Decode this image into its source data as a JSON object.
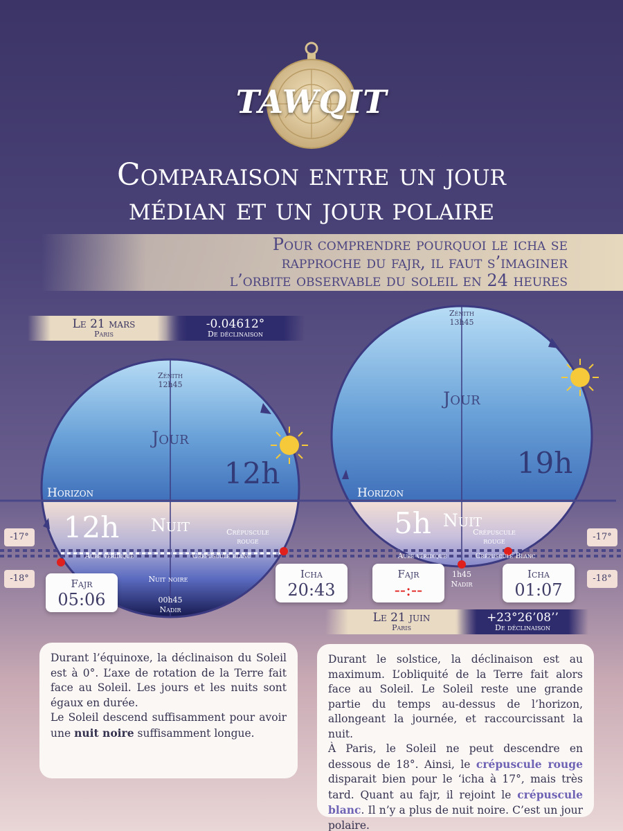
{
  "header": {
    "logo": "TAWQIT",
    "title_line1": "Comparaison entre un jour",
    "title_line2": "médian et un jour polaire",
    "subtitle_line1": "Pour comprendre pourquoi le icha se",
    "subtitle_line2": "rapproche du fajr, il faut s’imaginer",
    "subtitle_line3": "l’orbite observable du soleil en 24 heures"
  },
  "left_diagram": {
    "date": "Le 21 mars",
    "city": "Paris",
    "declination": "-0.04612°",
    "declination_label": "De déclinaison",
    "zenith": "Zénith",
    "zenith_time": "12h45",
    "day_label": "Jour",
    "day_duration": "12h",
    "horizon": "Horizon",
    "night_label": "Nuit",
    "night_duration": "12h",
    "red_twilight_line1": "Crépuscule",
    "red_twilight_line2": "rouge",
    "true_dawn": "Aube véridique",
    "white_twilight": "Crépuscule blanc",
    "dark_night": "Nuit noire",
    "nadir_time": "00h45",
    "nadir": "Nadir",
    "fajr_label": "Fajr",
    "fajr_time": "05:06",
    "icha_label": "Icha",
    "icha_time": "20:43",
    "angle_17": "-17°",
    "angle_18": "-18°"
  },
  "right_diagram": {
    "date": "Le 21 juin",
    "city": "Paris",
    "declination": "+23°26’08’’",
    "declination_label": "De déclinaison",
    "zenith": "Zénith",
    "zenith_time": "13h45",
    "day_label": "Jour",
    "day_duration": "19h",
    "horizon": "Horizon",
    "night_label": "Nuit",
    "night_duration": "5h",
    "red_twilight_line1": "Crépuscule",
    "red_twilight_line2": "rouge",
    "true_dawn": "Aube véridique",
    "white_twilight": "Crépuscule Blanc",
    "nadir_time": "1h45",
    "nadir": "Nadir",
    "fajr_label": "Fajr",
    "fajr_time": "--:--",
    "icha_label": "Icha",
    "icha_time": "01:07",
    "angle_17": "-17°",
    "angle_18": "-18°"
  },
  "text_left": {
    "p1": "Durant l’équinoxe, la déclinaison du Soleil est à 0°. L’axe de rotation de la Terre fait face au Soleil. Les jours et les nuits sont égaux en durée.",
    "p2_a": "Le Soleil descend suffisamment pour avoir une ",
    "p2_b": "nuit noire",
    "p2_c": " suffisamment longue."
  },
  "text_right": {
    "p1": "Durant le solstice, la déclinaison est au maximum. L’obliquité de la Terre fait alors face au Soleil. Le Soleil reste une grande partie du temps au-dessus de l’horizon, allongeant la journée, et raccourcissant la nuit.",
    "p2_a": "À Paris, le Soleil ne peut descendre en dessous de 18°. Ainsi, le ",
    "p2_b": "crépuscule rouge",
    "p2_c": " disparait bien pour le ‘icha à 17°, mais très tard. Quant au fajr, il rejoint le ",
    "p2_d": "crépuscule blanc",
    "p2_e": ". Il n’y a plus de nuit noire. C’est un jour polaire."
  },
  "colors": {
    "accent": "#4b4480",
    "highlight": "#6e63b4",
    "marker": "#e0201c",
    "sun": "#f5c93a"
  },
  "icons": [
    "astrolabe-icon",
    "sun-icon",
    "orbit-arrow-icon"
  ]
}
